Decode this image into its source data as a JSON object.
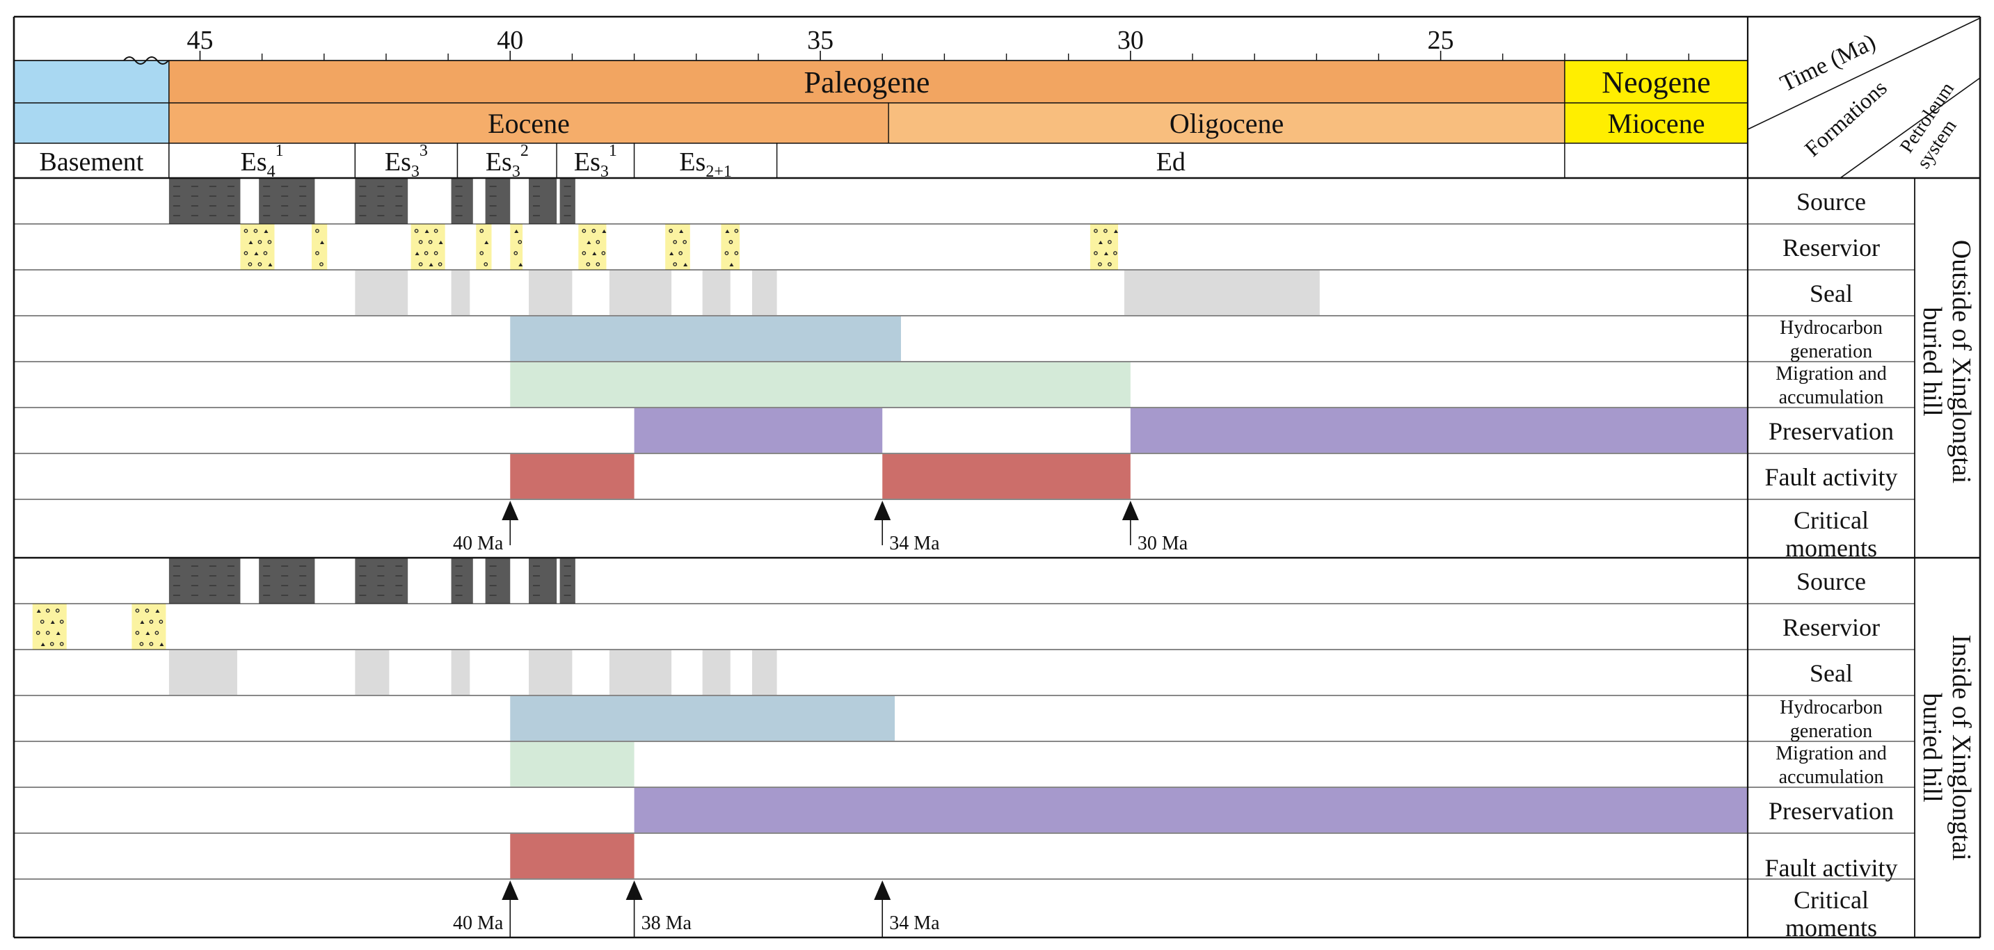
{
  "chart_data": {
    "type": "petroleum-system-events-chart",
    "header": {
      "diag_time": "Time (Ma)",
      "diag_formations": "Formations",
      "diag_petroleum": "Petroleum",
      "diag_system": "system"
    },
    "time_axis": {
      "start_ma": 48.0,
      "end_ma": 20.05,
      "tick_labels": [
        {
          "ma": 45,
          "label": "45"
        },
        {
          "ma": 40,
          "label": "40"
        },
        {
          "ma": 35,
          "label": "35"
        },
        {
          "ma": 30,
          "label": "30"
        },
        {
          "ma": 25,
          "label": "25"
        }
      ],
      "minor_ticks_ma": [
        44,
        43,
        42,
        41,
        39,
        38,
        37,
        36,
        34,
        33,
        32,
        31,
        29,
        28,
        27,
        26,
        24,
        23,
        22,
        21
      ]
    },
    "periods": [
      {
        "name": "",
        "start": 48.0,
        "end": 45.5,
        "color": "#a9d8f2"
      },
      {
        "name": "Paleogene",
        "start": 45.5,
        "end": 23.0,
        "color": "#f2a561"
      },
      {
        "name": "Neogene",
        "start": 23.0,
        "end": 20.05,
        "color": "#ffee00"
      }
    ],
    "epochs": [
      {
        "name": "",
        "start": 48.0,
        "end": 45.5,
        "color": "#a9d8f2"
      },
      {
        "name": "Eocene",
        "start": 45.5,
        "end": 33.9,
        "color": "#f5ad6a"
      },
      {
        "name": "Oligocene",
        "start": 33.9,
        "end": 23.0,
        "color": "#f8be7e"
      },
      {
        "name": "Miocene",
        "start": 23.0,
        "end": 20.05,
        "color": "#ffee00"
      }
    ],
    "formations": [
      {
        "base": "Basement",
        "sub": "",
        "sup": "",
        "start": 48.0,
        "end": 45.5
      },
      {
        "base": "Es",
        "sub": "4",
        "sup": "1",
        "start": 45.5,
        "end": 42.5
      },
      {
        "base": "Es",
        "sub": "3",
        "sup": "3",
        "start": 42.5,
        "end": 40.85
      },
      {
        "base": "Es",
        "sub": "3",
        "sup": "2",
        "start": 40.85,
        "end": 39.25
      },
      {
        "base": "Es",
        "sub": "3",
        "sup": "1",
        "start": 39.25,
        "end": 38.0
      },
      {
        "base": "Es",
        "sub": "2+1",
        "sup": "",
        "start": 38.0,
        "end": 35.7
      },
      {
        "base": "Ed",
        "sub": "",
        "sup": "",
        "start": 35.7,
        "end": 23.0
      },
      {
        "base": "",
        "sub": "",
        "sup": "",
        "start": 23.0,
        "end": 20.05
      }
    ],
    "sections": [
      {
        "title": "Outside of Xinglongtai buried hill",
        "title_line1": "Outside of Xinglongtai",
        "title_line2": "buried hill",
        "rows": [
          {
            "label": "Source",
            "label_lines": [
              "Source"
            ],
            "kind": "source",
            "intervals": [
              [
                45.5,
                44.35
              ],
              [
                44.05,
                43.15
              ],
              [
                42.5,
                41.65
              ],
              [
                40.95,
                40.6
              ],
              [
                40.4,
                40.0
              ],
              [
                39.7,
                39.25
              ],
              [
                39.2,
                38.95
              ]
            ]
          },
          {
            "label": "Reservior",
            "label_lines": [
              "Reservior"
            ],
            "kind": "reservoir",
            "intervals": [
              [
                44.35,
                43.8
              ],
              [
                43.2,
                42.95
              ],
              [
                41.6,
                41.05
              ],
              [
                40.55,
                40.3
              ],
              [
                40.0,
                39.8
              ],
              [
                38.9,
                38.45
              ],
              [
                37.5,
                37.1
              ],
              [
                36.6,
                36.3
              ],
              [
                30.65,
                30.2
              ]
            ]
          },
          {
            "label": "Seal",
            "label_lines": [
              "Seal"
            ],
            "kind": "seal",
            "intervals": [
              [
                42.5,
                41.65
              ],
              [
                40.95,
                40.65
              ],
              [
                39.7,
                39.0
              ],
              [
                38.4,
                37.4
              ],
              [
                36.9,
                36.45
              ],
              [
                36.1,
                35.7
              ],
              [
                30.1,
                26.95
              ]
            ]
          },
          {
            "label": "Hydrocarbon generation",
            "label_lines": [
              "Hydrocarbon",
              "generation"
            ],
            "kind": "generation",
            "intervals": [
              [
                40.0,
                33.7
              ]
            ]
          },
          {
            "label": "Migration and accumulation",
            "label_lines": [
              "Migration and",
              "accumulation"
            ],
            "kind": "migration",
            "intervals": [
              [
                40.0,
                30.0
              ]
            ]
          },
          {
            "label": "Preservation",
            "label_lines": [
              "Preservation"
            ],
            "kind": "preservation",
            "intervals": [
              [
                38.0,
                34.0
              ],
              [
                30.0,
                20.05
              ]
            ]
          },
          {
            "label": "Fault activity",
            "label_lines": [
              "Fault activity"
            ],
            "kind": "fault",
            "intervals": [
              [
                40.0,
                38.0
              ],
              [
                34.0,
                30.0
              ]
            ]
          },
          {
            "label": "Critical moments",
            "label_lines": [
              "Critical",
              "moments"
            ],
            "kind": "critical",
            "moments": [
              {
                "ma": 40,
                "label": "40 Ma"
              },
              {
                "ma": 34,
                "label": "34 Ma"
              },
              {
                "ma": 30,
                "label": "30 Ma"
              }
            ]
          }
        ]
      },
      {
        "title": "Inside of Xinglongtai buried hill",
        "title_line1": "Inside of Xinglongtai",
        "title_line2": "buried hill",
        "rows": [
          {
            "label": "Source",
            "label_lines": [
              "Source"
            ],
            "kind": "source",
            "intervals": [
              [
                45.5,
                44.35
              ],
              [
                44.05,
                43.15
              ],
              [
                42.5,
                41.65
              ],
              [
                40.95,
                40.6
              ],
              [
                40.4,
                40.0
              ],
              [
                39.7,
                39.25
              ],
              [
                39.2,
                38.95
              ]
            ]
          },
          {
            "label": "Reservior",
            "label_lines": [
              "Reservior"
            ],
            "kind": "reservoir",
            "intervals": [
              [
                47.7,
                47.15
              ],
              [
                46.1,
                45.55
              ]
            ]
          },
          {
            "label": "Seal",
            "label_lines": [
              "Seal"
            ],
            "kind": "seal",
            "intervals": [
              [
                45.5,
                44.4
              ],
              [
                42.5,
                41.95
              ],
              [
                40.95,
                40.65
              ],
              [
                39.7,
                39.0
              ],
              [
                38.4,
                37.4
              ],
              [
                36.9,
                36.45
              ],
              [
                36.1,
                35.7
              ]
            ]
          },
          {
            "label": "Hydrocarbon generation",
            "label_lines": [
              "Hydrocarbon",
              "generation"
            ],
            "kind": "generation",
            "intervals": [
              [
                40.0,
                33.8
              ]
            ]
          },
          {
            "label": "Migration and accumulation",
            "label_lines": [
              "Migration and",
              "accumulation"
            ],
            "kind": "migration",
            "intervals": [
              [
                40.0,
                38.0
              ]
            ]
          },
          {
            "label": "Preservation",
            "label_lines": [
              "Preservation"
            ],
            "kind": "preservation",
            "intervals": [
              [
                38.0,
                20.05
              ]
            ]
          },
          {
            "label": "Fault activity",
            "label_lines": [
              "Fault activity"
            ],
            "kind": "fault",
            "intervals": [
              [
                40.0,
                38.0
              ]
            ]
          },
          {
            "label": "Critical moments",
            "label_lines": [
              "Critical",
              "moments"
            ],
            "kind": "critical",
            "moments": [
              {
                "ma": 40,
                "label": "40 Ma"
              },
              {
                "ma": 38,
                "label": "38 Ma"
              },
              {
                "ma": 34,
                "label": "34 Ma"
              }
            ]
          }
        ]
      }
    ],
    "colors": {
      "source": "#595959",
      "reservoir": "#fbf3a1",
      "seal": "#dbdbdb",
      "generation": "#b5cddb",
      "migration": "#d4ead8",
      "preservation": "#a699cc",
      "fault": "#cc6e6a"
    }
  }
}
